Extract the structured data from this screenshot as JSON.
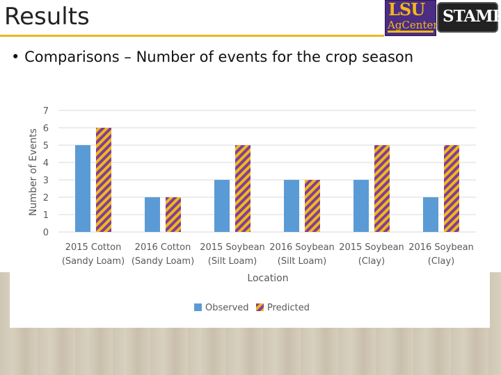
{
  "slide": {
    "title": "Results",
    "bullet": "Comparisons – Number of events for the crop season",
    "logo_left_text": "LSU",
    "logo_left_sub": "AgCenter",
    "logo_right_text": "STAMP"
  },
  "colors": {
    "observed": "#5b9bd5",
    "predicted_a": "#7f3f98",
    "predicted_b": "#f2b81a",
    "accent": "#e8b91c"
  },
  "chart_data": {
    "type": "bar",
    "categories": [
      [
        "2015 Cotton",
        "(Sandy Loam)"
      ],
      [
        "2016 Cotton",
        "(Sandy Loam)"
      ],
      [
        "2015 Soybean",
        "(Silt Loam)"
      ],
      [
        "2016 Soybean",
        "(Silt Loam)"
      ],
      [
        "2015 Soybean",
        "(Clay)"
      ],
      [
        "2016 Soybean",
        "(Clay)"
      ]
    ],
    "series": [
      {
        "name": "Observed",
        "values": [
          5,
          2,
          3,
          3,
          3,
          2
        ]
      },
      {
        "name": "Predicted",
        "values": [
          6,
          2,
          5,
          3,
          5,
          5
        ]
      }
    ],
    "xlabel": "Location",
    "ylabel": "Number of Events",
    "ylim": [
      0,
      7
    ],
    "yticks": [
      "0",
      "1",
      "2",
      "3",
      "4",
      "5",
      "6",
      "7"
    ],
    "grid": true,
    "legend_position": "bottom"
  }
}
